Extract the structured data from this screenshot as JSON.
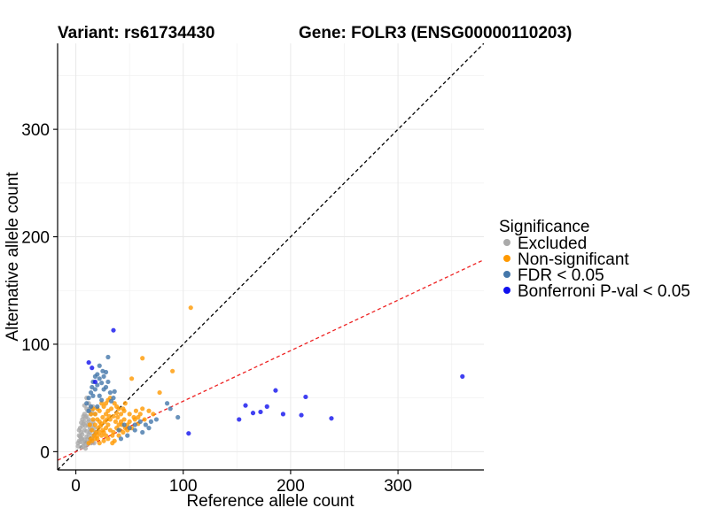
{
  "chart_data": {
    "type": "scatter",
    "title_left": "Variant: rs61734430",
    "title_right": "Gene: FOLR3 (ENSG00000110203)",
    "xlabel": "Reference allele count",
    "ylabel": "Alternative allele count",
    "xlim": [
      -17,
      380
    ],
    "ylim": [
      -17,
      380
    ],
    "xticks": [
      0,
      100,
      200,
      300
    ],
    "yticks": [
      0,
      100,
      200,
      300
    ],
    "grid": true,
    "legend": {
      "title": "Significance",
      "placement": "right",
      "items": [
        {
          "label": "Excluded",
          "color": "#aaaaaa"
        },
        {
          "label": "Non-significant",
          "color": "#ff9900"
        },
        {
          "label": "FDR < 0.05",
          "color": "#4477aa"
        },
        {
          "label": "Bonferroni P-val < 0.05",
          "color": "#1010ee"
        }
      ]
    },
    "reference_lines": [
      {
        "name": "identity",
        "slope": 1,
        "intercept": 0,
        "color": "#000000",
        "dash": true
      },
      {
        "name": "fit",
        "slope": 0.47,
        "intercept": 0,
        "color": "#ee2222",
        "dash": true
      }
    ],
    "series": [
      {
        "name": "Excluded",
        "color": "#aaaaaa",
        "points": [
          [
            2,
            5
          ],
          [
            4,
            9
          ],
          [
            5,
            4
          ],
          [
            6,
            12
          ],
          [
            7,
            8
          ],
          [
            3,
            15
          ],
          [
            8,
            20
          ],
          [
            9,
            6
          ],
          [
            10,
            14
          ],
          [
            11,
            25
          ],
          [
            4,
            22
          ],
          [
            6,
            30
          ],
          [
            8,
            35
          ],
          [
            10,
            40
          ],
          [
            12,
            45
          ],
          [
            5,
            18
          ],
          [
            7,
            26
          ],
          [
            9,
            32
          ],
          [
            3,
            10
          ],
          [
            11,
            12
          ],
          [
            13,
            18
          ],
          [
            14,
            8
          ],
          [
            12,
            30
          ],
          [
            15,
            38
          ],
          [
            16,
            42
          ],
          [
            10,
            50
          ],
          [
            12,
            28
          ],
          [
            6,
            16
          ],
          [
            8,
            11
          ],
          [
            9,
            24
          ],
          [
            7,
            33
          ],
          [
            5,
            27
          ],
          [
            4,
            14
          ],
          [
            13,
            22
          ],
          [
            14,
            35
          ],
          [
            11,
            38
          ],
          [
            10,
            19
          ],
          [
            9,
            9
          ],
          [
            15,
            25
          ],
          [
            16,
            15
          ],
          [
            2,
            8
          ],
          [
            3,
            20
          ],
          [
            6,
            24
          ],
          [
            8,
            28
          ],
          [
            12,
            16
          ],
          [
            14,
            20
          ],
          [
            16,
            28
          ],
          [
            18,
            35
          ],
          [
            13,
            40
          ],
          [
            17,
            22
          ],
          [
            5,
            12
          ],
          [
            7,
            5
          ],
          [
            9,
            3
          ],
          [
            11,
            7
          ],
          [
            13,
            10
          ],
          [
            15,
            12
          ],
          [
            17,
            8
          ],
          [
            18,
            18
          ],
          [
            10,
            33
          ],
          [
            8,
            43
          ]
        ]
      },
      {
        "name": "Non-significant",
        "color": "#ff9900",
        "points": [
          [
            12,
            8
          ],
          [
            15,
            10
          ],
          [
            18,
            12
          ],
          [
            20,
            15
          ],
          [
            22,
            18
          ],
          [
            25,
            20
          ],
          [
            28,
            22
          ],
          [
            30,
            25
          ],
          [
            32,
            20
          ],
          [
            35,
            18
          ],
          [
            38,
            22
          ],
          [
            40,
            25
          ],
          [
            42,
            28
          ],
          [
            45,
            30
          ],
          [
            48,
            25
          ],
          [
            50,
            28
          ],
          [
            55,
            30
          ],
          [
            58,
            32
          ],
          [
            60,
            35
          ],
          [
            62,
            40
          ],
          [
            15,
            20
          ],
          [
            18,
            25
          ],
          [
            20,
            30
          ],
          [
            22,
            28
          ],
          [
            25,
            32
          ],
          [
            28,
            35
          ],
          [
            30,
            38
          ],
          [
            32,
            30
          ],
          [
            35,
            33
          ],
          [
            38,
            36
          ],
          [
            40,
            40
          ],
          [
            42,
            35
          ],
          [
            45,
            38
          ],
          [
            20,
            12
          ],
          [
            24,
            15
          ],
          [
            26,
            10
          ],
          [
            30,
            12
          ],
          [
            34,
            15
          ],
          [
            36,
            10
          ],
          [
            40,
            15
          ],
          [
            44,
            18
          ],
          [
            48,
            20
          ],
          [
            52,
            22
          ],
          [
            16,
            30
          ],
          [
            18,
            35
          ],
          [
            22,
            38
          ],
          [
            26,
            42
          ],
          [
            28,
            45
          ],
          [
            32,
            50
          ],
          [
            36,
            45
          ],
          [
            52,
            68
          ],
          [
            62,
            87
          ],
          [
            78,
            55
          ],
          [
            90,
            75
          ],
          [
            107,
            134
          ],
          [
            44,
            40
          ],
          [
            33,
            40
          ],
          [
            27,
            28
          ],
          [
            23,
            24
          ],
          [
            19,
            18
          ],
          [
            17,
            15
          ],
          [
            14,
            12
          ],
          [
            13,
            25
          ],
          [
            21,
            22
          ],
          [
            24,
            26
          ],
          [
            29,
            30
          ],
          [
            31,
            33
          ],
          [
            37,
            28
          ],
          [
            39,
            32
          ],
          [
            41,
            20
          ],
          [
            43,
            25
          ],
          [
            46,
            22
          ],
          [
            50,
            35
          ],
          [
            54,
            32
          ],
          [
            56,
            38
          ],
          [
            58,
            26
          ],
          [
            64,
            30
          ],
          [
            68,
            38
          ],
          [
            72,
            35
          ],
          [
            14,
            35
          ],
          [
            16,
            40
          ],
          [
            24,
            45
          ],
          [
            30,
            48
          ],
          [
            38,
            42
          ],
          [
            46,
            45
          ],
          [
            20,
            40
          ],
          [
            26,
            18
          ],
          [
            22,
            8
          ],
          [
            34,
            8
          ],
          [
            28,
            15
          ]
        ]
      },
      {
        "name": "FDR < 0.05",
        "color": "#4477aa",
        "points": [
          [
            10,
            45
          ],
          [
            12,
            50
          ],
          [
            14,
            55
          ],
          [
            15,
            60
          ],
          [
            16,
            65
          ],
          [
            18,
            70
          ],
          [
            20,
            72
          ],
          [
            22,
            68
          ],
          [
            25,
            75
          ],
          [
            28,
            60
          ],
          [
            30,
            65
          ],
          [
            32,
            55
          ],
          [
            35,
            50
          ],
          [
            18,
            58
          ],
          [
            20,
            62
          ],
          [
            22,
            52
          ],
          [
            26,
            58
          ],
          [
            24,
            48
          ],
          [
            14,
            42
          ],
          [
            12,
            38
          ],
          [
            30,
            88
          ],
          [
            22,
            80
          ],
          [
            28,
            74
          ],
          [
            16,
            52
          ],
          [
            40,
            20
          ],
          [
            45,
            25
          ],
          [
            50,
            22
          ],
          [
            55,
            25
          ],
          [
            60,
            28
          ],
          [
            65,
            25
          ],
          [
            70,
            28
          ],
          [
            62,
            18
          ],
          [
            55,
            20
          ],
          [
            48,
            15
          ],
          [
            42,
            12
          ],
          [
            85,
            45
          ],
          [
            95,
            32
          ],
          [
            88,
            40
          ],
          [
            75,
            30
          ],
          [
            68,
            22
          ],
          [
            20,
            42
          ],
          [
            24,
            64
          ],
          [
            26,
            70
          ],
          [
            33,
            47
          ],
          [
            36,
            56
          ]
        ]
      },
      {
        "name": "Bonferroni P-val < 0.05",
        "color": "#1010ee",
        "points": [
          [
            12,
            83
          ],
          [
            15,
            78
          ],
          [
            18,
            65
          ],
          [
            35,
            113
          ],
          [
            105,
            17
          ],
          [
            152,
            30
          ],
          [
            158,
            43
          ],
          [
            165,
            36
          ],
          [
            172,
            37
          ],
          [
            178,
            42
          ],
          [
            186,
            57
          ],
          [
            193,
            35
          ],
          [
            210,
            34
          ],
          [
            214,
            51
          ],
          [
            238,
            31
          ],
          [
            360,
            70
          ]
        ]
      }
    ]
  }
}
